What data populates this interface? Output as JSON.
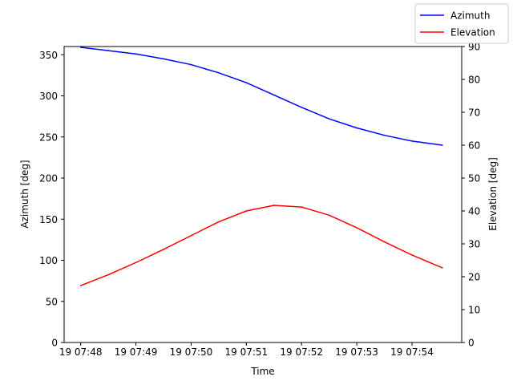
{
  "chart_data": {
    "type": "line",
    "xlabel": "Time",
    "ylabel": "Azimuth [deg]",
    "y2label": "Elevation [deg]",
    "x_tick_labels": [
      "19 07:48",
      "19 07:49",
      "19 07:50",
      "19 07:51",
      "19 07:52",
      "19 07:53",
      "19 07:54"
    ],
    "x_tick_minutes": [
      48,
      49,
      50,
      51,
      52,
      53,
      54
    ],
    "xlim_minutes": [
      47.7,
      54.9
    ],
    "ylim": [
      0,
      360
    ],
    "y_ticks": [
      0,
      50,
      100,
      150,
      200,
      250,
      300,
      350
    ],
    "y2lim": [
      0,
      90
    ],
    "y2_ticks": [
      0,
      10,
      20,
      30,
      40,
      50,
      60,
      70,
      80,
      90
    ],
    "grid": false,
    "legend_position": "top-right",
    "series": [
      {
        "name": "Azimuth",
        "axis": "left",
        "color": "#0000ff",
        "x_minutes": [
          48.0,
          48.5,
          49.0,
          49.5,
          50.0,
          50.5,
          51.0,
          51.5,
          52.0,
          52.5,
          53.0,
          53.5,
          54.0,
          54.55
        ],
        "values": [
          359,
          355,
          351,
          345,
          338,
          328,
          316,
          301,
          286,
          272,
          261,
          252,
          245,
          240
        ]
      },
      {
        "name": "Elevation",
        "axis": "right",
        "color": "#ff0000",
        "x_minutes": [
          48.0,
          48.5,
          49.0,
          49.5,
          50.0,
          50.5,
          51.0,
          51.5,
          52.0,
          52.5,
          53.0,
          53.5,
          54.0,
          54.55
        ],
        "values": [
          17.3,
          20.6,
          24.3,
          28.3,
          32.5,
          36.7,
          40.0,
          41.7,
          41.2,
          38.7,
          34.9,
          30.6,
          26.6,
          22.7
        ]
      }
    ]
  }
}
